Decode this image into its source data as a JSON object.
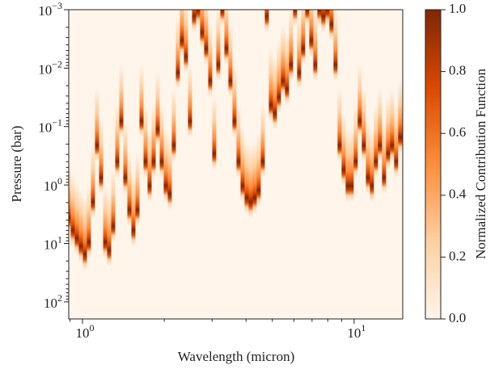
{
  "chart_data": {
    "type": "heatmap",
    "xlabel": "Wavelength (micron)",
    "ylabel": "Pressure (bar)",
    "xscale": "log",
    "yscale": "log",
    "xlim": [
      0.89,
      15.1
    ],
    "ylim": [
      196,
      0.001
    ],
    "xticks": [
      {
        "value": 1,
        "label": "10",
        "exponent": "0"
      },
      {
        "value": 10,
        "label": "10",
        "exponent": "1"
      }
    ],
    "xminorticks": [
      0.9,
      2,
      3,
      4,
      5,
      6,
      7,
      8,
      9
    ],
    "yticks": [
      {
        "value": 0.001,
        "label": "10",
        "exponent": "−3"
      },
      {
        "value": 0.01,
        "label": "10",
        "exponent": "−2"
      },
      {
        "value": 0.1,
        "label": "10",
        "exponent": "−1"
      },
      {
        "value": 1,
        "label": "10",
        "exponent": "0"
      },
      {
        "value": 10,
        "label": "10",
        "exponent": "1"
      },
      {
        "value": 100,
        "label": "10",
        "exponent": "2"
      }
    ],
    "yminorticks": [
      0.002,
      0.003,
      0.004,
      0.005,
      0.006,
      0.007,
      0.008,
      0.009,
      0.02,
      0.03,
      0.04,
      0.05,
      0.06,
      0.07,
      0.08,
      0.09,
      0.2,
      0.3,
      0.4,
      0.5,
      0.6,
      0.7,
      0.8,
      0.9,
      2,
      3,
      4,
      5,
      6,
      7,
      8,
      9,
      20,
      30,
      40,
      50,
      60,
      70,
      80,
      90
    ],
    "x": [
      0.89,
      0.921,
      0.953,
      0.986,
      1.021,
      1.056,
      1.093,
      1.131,
      1.171,
      1.212,
      1.254,
      1.298,
      1.343,
      1.39,
      1.438,
      1.488,
      1.54,
      1.594,
      1.649,
      1.707,
      1.766,
      1.828,
      1.892,
      1.957,
      2.025,
      2.096,
      2.169,
      2.245,
      2.323,
      2.404,
      2.488,
      2.575,
      2.665,
      2.757,
      2.854,
      2.953,
      3.056,
      3.162,
      3.273,
      3.387,
      3.505,
      3.627,
      3.754,
      3.885,
      4.02,
      4.16,
      4.305,
      4.455,
      4.611,
      4.771,
      4.938,
      5.11,
      5.288,
      5.472,
      5.663,
      5.861,
      6.065,
      6.277,
      6.494,
      6.721,
      6.956,
      7.196,
      7.447,
      7.707,
      7.976,
      8.254,
      8.541,
      8.841,
      9.149,
      9.467,
      9.797,
      10.14,
      10.49,
      10.86,
      11.24,
      11.63,
      12.03,
      12.45,
      12.89,
      13.34,
      13.8,
      14.28,
      14.78
    ],
    "values": [
      3.66,
      5.9,
      8.11,
      11.1,
      15.3,
      9.51,
      1.94,
      0.209,
      0.746,
      9.51,
      13.1,
      5.03,
      0.395,
      0.0805,
      0.746,
      2.66,
      5.9,
      2.66,
      0.0805,
      0.395,
      1.03,
      0.395,
      0.111,
      0.395,
      1.03,
      1.41,
      0.209,
      0.0119,
      0.00335,
      0.00632,
      0.0805,
      0.00129,
      0.001,
      0.00244,
      0.0046,
      0.0164,
      0.288,
      0.00869,
      0.001,
      0.0046,
      0.0164,
      0.0805,
      0.395,
      1.03,
      1.65,
      1.94,
      1.65,
      1.22,
      0.395,
      0.00129,
      0.0427,
      0.0586,
      0.031,
      0.0164,
      0.0226,
      0.00869,
      0.001,
      0.0119,
      0.0046,
      0.001,
      0.00335,
      0.00869,
      0.001,
      0.00129,
      0.001,
      0.00177,
      0.00869,
      0.209,
      0.543,
      1.03,
      1.03,
      0.395,
      0.0805,
      0.209,
      0.746,
      1.03,
      0.395,
      0.209,
      0.746,
      0.288,
      0.209,
      0.395,
      0.152
    ],
    "colormap": [
      "#fff5eb",
      "#fdd0a2",
      "#fd8d3c",
      "#d94801",
      "#7f2704"
    ],
    "colorbar": {
      "label": "Normalized Contribution Function",
      "lim": [
        0,
        1
      ],
      "ticks": [
        {
          "value": 0,
          "label": "0.0"
        },
        {
          "value": 0.2,
          "label": "0.2"
        },
        {
          "value": 0.4,
          "label": "0.4"
        },
        {
          "value": 0.6,
          "label": "0.6"
        },
        {
          "value": 0.8,
          "label": "0.8"
        },
        {
          "value": 1,
          "label": "1.0"
        }
      ]
    }
  }
}
